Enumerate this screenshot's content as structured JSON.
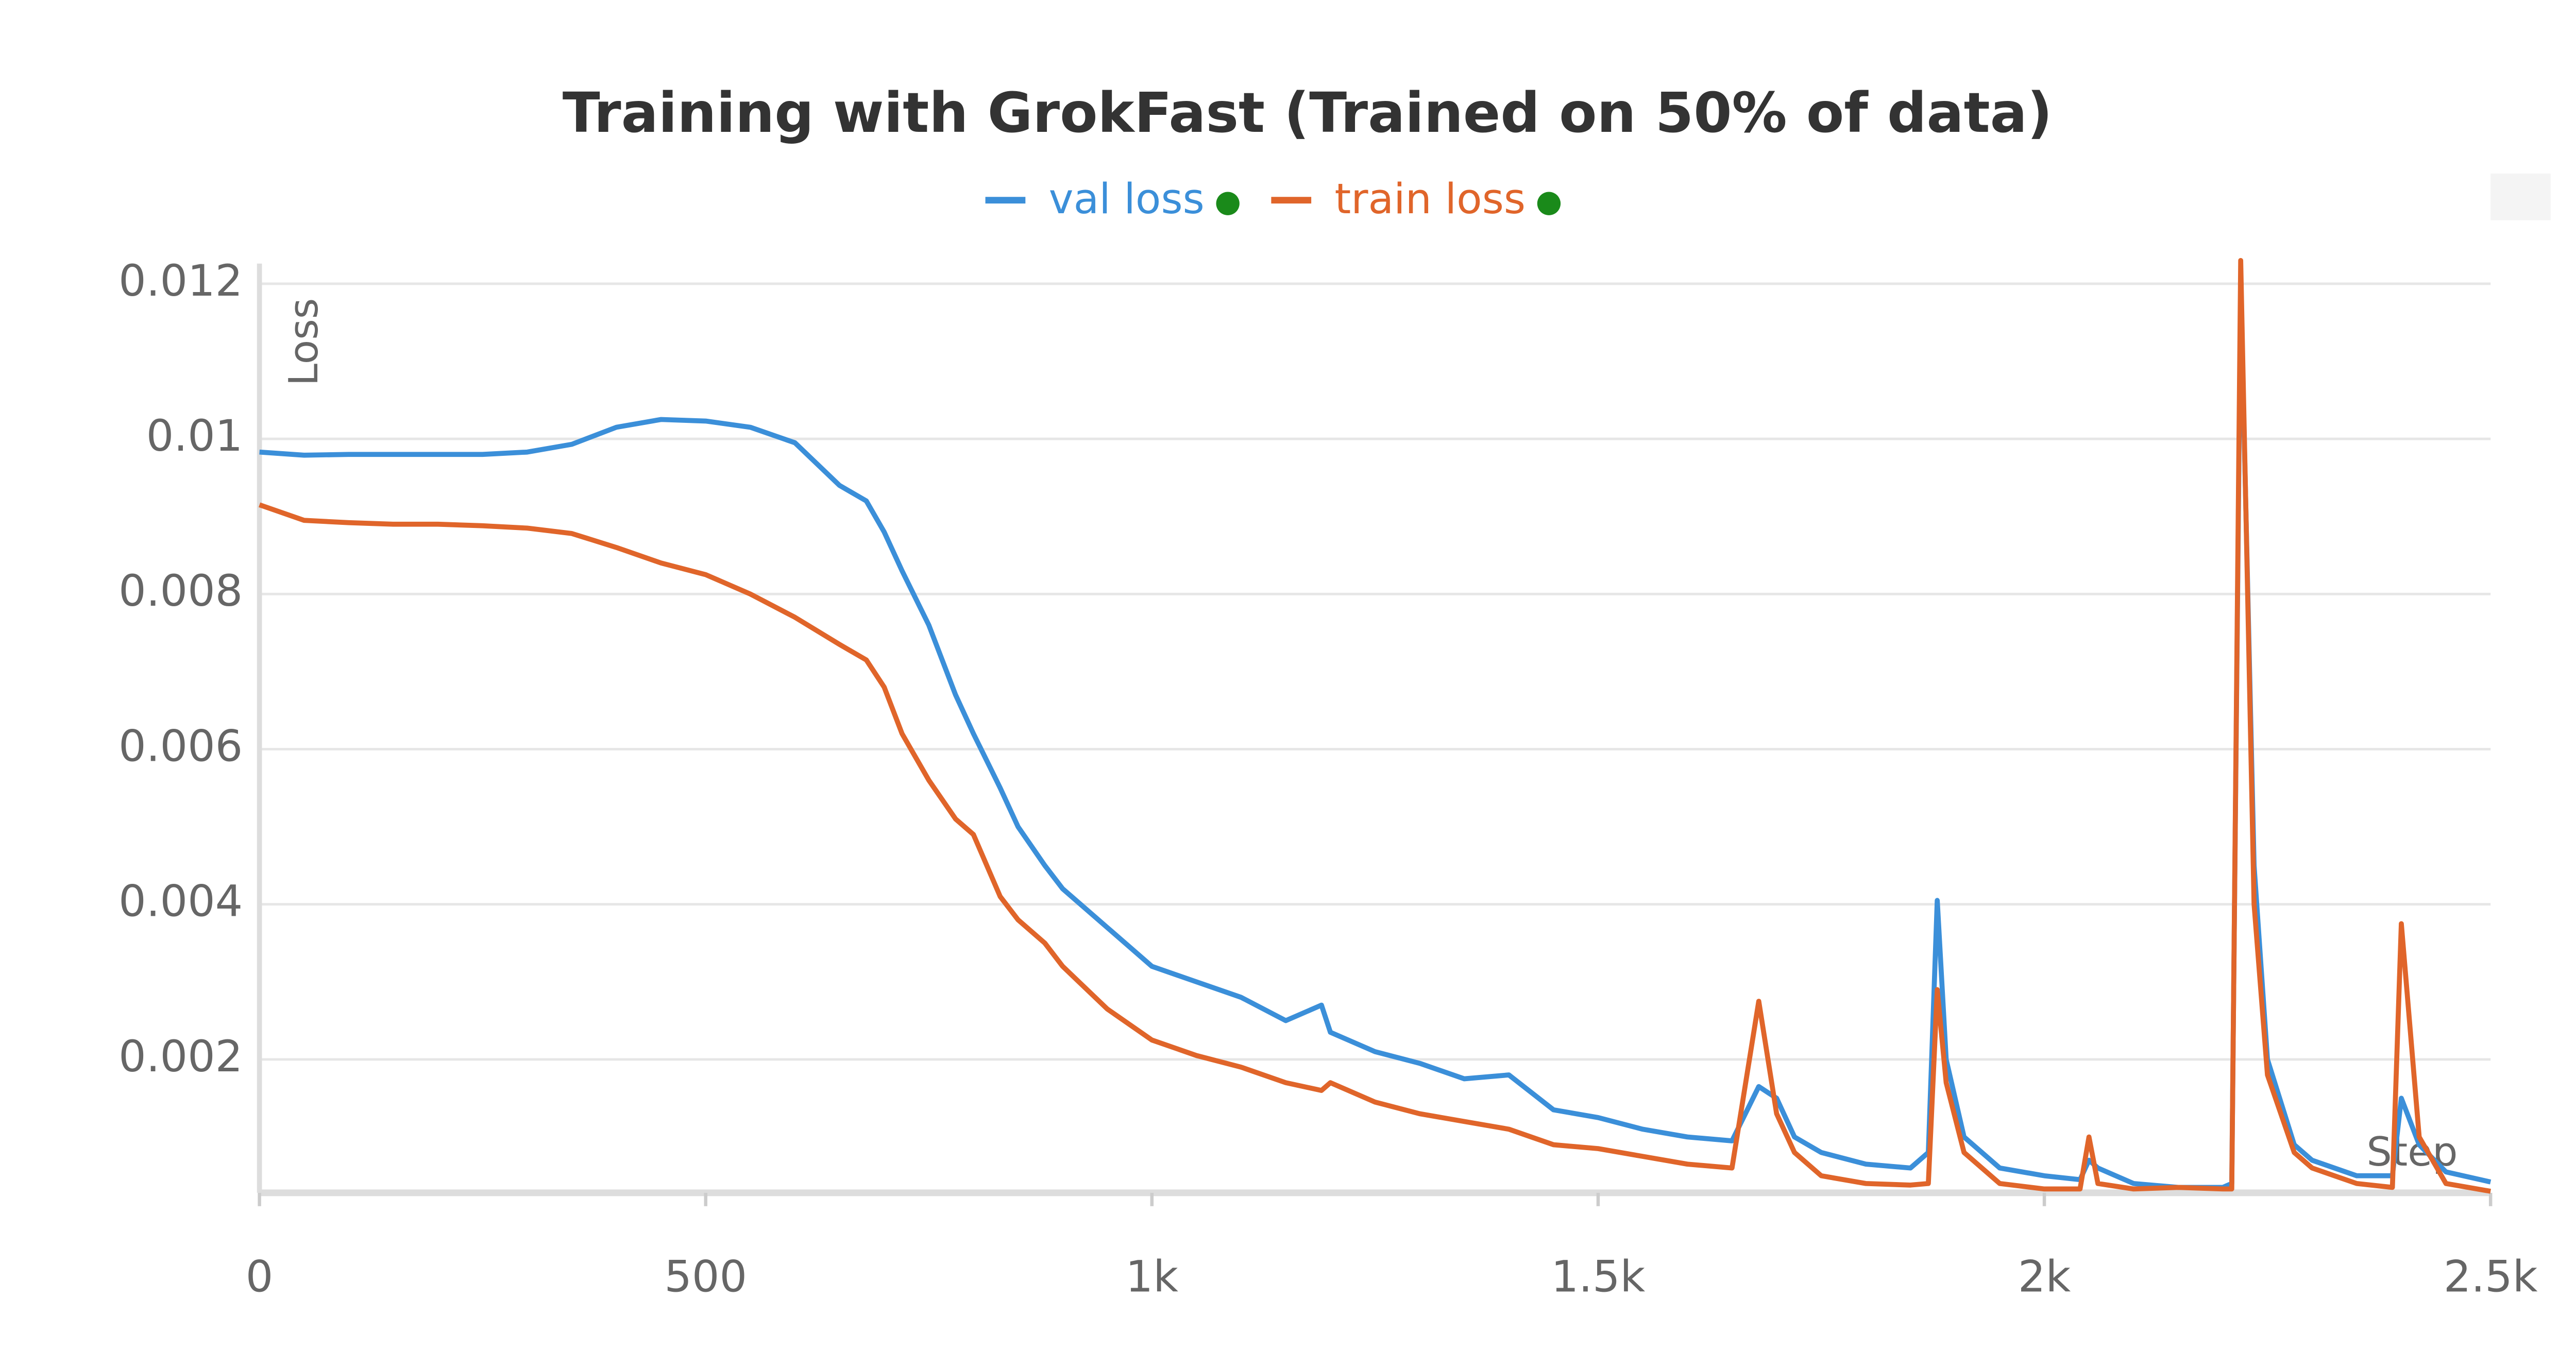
{
  "chart_data": {
    "type": "line",
    "title": "Training with GrokFast (Trained on 50% of data)",
    "y_label": "Loss",
    "x_label": "Step",
    "x": [
      0,
      50,
      100,
      150,
      200,
      250,
      300,
      350,
      400,
      450,
      500,
      550,
      600,
      650,
      680,
      700,
      720,
      750,
      780,
      800,
      830,
      850,
      880,
      900,
      950,
      1000,
      1050,
      1100,
      1150,
      1190,
      1200,
      1250,
      1300,
      1350,
      1400,
      1450,
      1500,
      1550,
      1600,
      1650,
      1680,
      1700,
      1720,
      1750,
      1800,
      1850,
      1870,
      1880,
      1890,
      1910,
      1950,
      2000,
      2040,
      2050,
      2060,
      2100,
      2150,
      2200,
      2210,
      2220,
      2235,
      2250,
      2280,
      2300,
      2350,
      2390,
      2400,
      2420,
      2450,
      2500
    ],
    "series": [
      {
        "name": "val loss",
        "color": "#3b8fd9",
        "values": [
          0.00983,
          0.00979,
          0.0098,
          0.0098,
          0.0098,
          0.0098,
          0.00983,
          0.00993,
          0.01015,
          0.01025,
          0.01023,
          0.01015,
          0.00995,
          0.0094,
          0.0092,
          0.0088,
          0.0083,
          0.0076,
          0.0067,
          0.0062,
          0.0055,
          0.005,
          0.0045,
          0.0042,
          0.0037,
          0.0032,
          0.003,
          0.0028,
          0.0025,
          0.0027,
          0.00235,
          0.0021,
          0.00195,
          0.00175,
          0.0018,
          0.00135,
          0.00125,
          0.0011,
          0.001,
          0.00095,
          0.00165,
          0.0015,
          0.001,
          0.0008,
          0.00065,
          0.0006,
          0.0008,
          0.00405,
          0.002,
          0.001,
          0.0006,
          0.0005,
          0.00045,
          0.0007,
          0.0006,
          0.0004,
          0.00035,
          0.00035,
          0.0004,
          0.012,
          0.0045,
          0.002,
          0.0009,
          0.0007,
          0.0005,
          0.0005,
          0.0015,
          0.0009,
          0.00055,
          0.00042
        ]
      },
      {
        "name": "train loss",
        "color": "#e0652a",
        "values": [
          0.00915,
          0.00895,
          0.00892,
          0.0089,
          0.0089,
          0.00888,
          0.00885,
          0.00878,
          0.0086,
          0.0084,
          0.00825,
          0.008,
          0.0077,
          0.00735,
          0.00715,
          0.0068,
          0.0062,
          0.0056,
          0.0051,
          0.0049,
          0.0041,
          0.0038,
          0.0035,
          0.0032,
          0.00265,
          0.00225,
          0.00205,
          0.0019,
          0.0017,
          0.0016,
          0.0017,
          0.00145,
          0.0013,
          0.0012,
          0.0011,
          0.0009,
          0.00085,
          0.00075,
          0.00065,
          0.0006,
          0.00275,
          0.0013,
          0.0008,
          0.0005,
          0.0004,
          0.00038,
          0.0004,
          0.0029,
          0.0017,
          0.0008,
          0.0004,
          0.00033,
          0.00033,
          0.001,
          0.0004,
          0.00033,
          0.00035,
          0.00033,
          0.00033,
          0.0123,
          0.004,
          0.0018,
          0.0008,
          0.0006,
          0.0004,
          0.00035,
          0.00375,
          0.001,
          0.0004,
          0.0003
        ]
      }
    ],
    "xlim": [
      0,
      2500
    ],
    "xticks": [
      0,
      500,
      {
        "value": 1000,
        "label": "1k"
      },
      {
        "value": 1500,
        "label": "1.5k"
      },
      {
        "value": 2000,
        "label": "2k"
      },
      {
        "value": 2500,
        "label": "2.5k"
      }
    ],
    "ylim": [
      0.00028,
      0.01226
    ],
    "yticks": [
      0.002,
      0.004,
      0.006,
      0.008,
      0.01,
      0.012
    ],
    "grid": true
  }
}
